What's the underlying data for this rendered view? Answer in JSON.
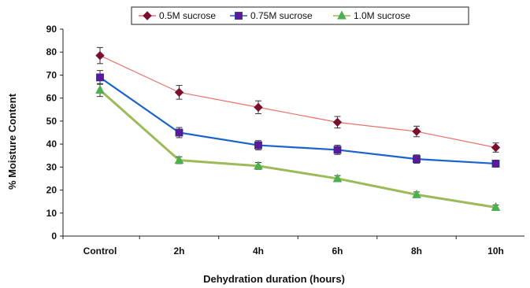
{
  "chart_data": {
    "type": "line",
    "categories": [
      "Control",
      "2h",
      "4h",
      "6h",
      "8h",
      "10h"
    ],
    "xlabel": "Dehydration duration (hours)",
    "ylabel": "% Moisture Content",
    "ylim": [
      0,
      90
    ],
    "yticks": [
      0,
      10,
      20,
      30,
      40,
      50,
      60,
      70,
      80,
      90
    ],
    "legend_position": "top-center",
    "grid": false,
    "series": [
      {
        "name": "0.5M sucrose",
        "values": [
          78.5,
          62.5,
          56.0,
          49.5,
          45.5,
          38.5
        ],
        "errors": [
          3.5,
          3.0,
          2.8,
          2.5,
          2.3,
          2.0
        ],
        "line_color": "#e8716a",
        "marker_color": "#7a1030",
        "marker": "diamond"
      },
      {
        "name": "0.75M sucrose",
        "values": [
          69.0,
          45.0,
          39.5,
          37.5,
          33.5,
          31.5
        ],
        "errors": [
          3.0,
          2.2,
          2.0,
          2.0,
          1.8,
          1.5
        ],
        "line_color": "#1a62cc",
        "marker_color": "#5a1a9a",
        "marker": "square"
      },
      {
        "name": "1.0M sucrose",
        "values": [
          63.5,
          33.0,
          30.5,
          25.0,
          18.0,
          12.5
        ],
        "errors": [
          2.8,
          1.5,
          1.5,
          1.3,
          1.2,
          1.0
        ],
        "line_color": "#9bbb59",
        "marker_color": "#4caf50",
        "marker": "triangle"
      }
    ]
  }
}
